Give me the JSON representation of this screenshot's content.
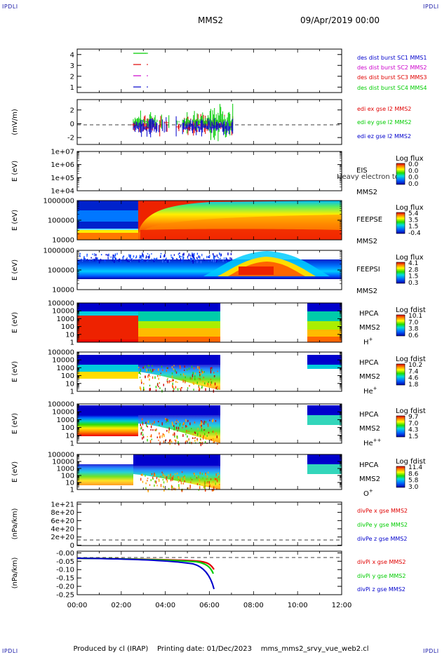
{
  "header": {
    "title": "MMS2",
    "date": "09/Apr/2019 00:00"
  },
  "corner_label": "IPDLI",
  "footer": {
    "producer": "Produced by cl (IRAP)",
    "printing_date": "Printing date: 01/Dec/2023",
    "script": "mms_mms2_srvy_vue_web2.cl"
  },
  "colors": {
    "red": "#e00000",
    "green": "#00cc00",
    "blue": "#0000cc",
    "magenta": "#cc00cc"
  },
  "chart_data": [
    {
      "type": "line",
      "name": "burst-segments",
      "ylim": [
        0.5,
        4.5
      ],
      "ticks": [
        "1",
        "2",
        "3",
        "4"
      ],
      "series": [
        {
          "name": "des dist burst SC1 MMS1",
          "color": "#0000cc"
        },
        {
          "name": "des dist burst SC2 MMS2",
          "color": "#cc00cc"
        },
        {
          "name": "des dist burst SC3 MMS3",
          "color": "#e00000"
        },
        {
          "name": "des dist burst SC4 MMS4",
          "color": "#00cc00"
        }
      ]
    },
    {
      "type": "line",
      "name": "edi-e-field",
      "ylabel": "(mV/m)",
      "ylim": [
        -3,
        3.5
      ],
      "ticks": [
        "-2",
        "0",
        "2"
      ],
      "series": [
        {
          "name": "edi ex gse l2 MMS2",
          "color": "#e00000"
        },
        {
          "name": "edi ey gse l2 MMS2",
          "color": "#00cc00"
        },
        {
          "name": "edi ez gse l2 MMS2",
          "color": "#0000cc"
        }
      ]
    },
    {
      "type": "heatmap",
      "name": "eis",
      "ylabel": "E (eV)",
      "ticks": [
        "1e+07",
        "1e+06",
        "1e+05",
        "1e+04"
      ],
      "instrument": "EIS",
      "spacecraft": "MMS2",
      "overlay": "Heavy electron to",
      "colorbar": {
        "title": "Log flux",
        "labels": [
          "0.0",
          "0.0",
          "0.0",
          "0.0"
        ]
      }
    },
    {
      "type": "heatmap",
      "name": "feeps-electron",
      "ylabel": "E (eV)",
      "ticks": [
        "1000000",
        "100000",
        "10000"
      ],
      "instrument": "FEEPSE",
      "spacecraft": "MMS2",
      "colorbar": {
        "title": "Log flux",
        "labels": [
          "5.4",
          "3.5",
          "1.5",
          "-0.4"
        ]
      }
    },
    {
      "type": "heatmap",
      "name": "feeps-ion",
      "ylabel": "E (eV)",
      "ticks": [
        "1000000",
        "100000",
        "10000"
      ],
      "instrument": "FEEPSI",
      "spacecraft": "MMS2",
      "colorbar": {
        "title": "Log flux",
        "labels": [
          "4.1",
          "2.8",
          "1.5",
          "0.3"
        ]
      }
    },
    {
      "type": "heatmap",
      "name": "hpca-h",
      "ylabel": "E (eV)",
      "ticks": [
        "100000",
        "10000",
        "1000",
        "100",
        "10",
        "1"
      ],
      "instrument": "HPCA",
      "spacecraft": "MMS2",
      "species": "H",
      "charge": "+",
      "colorbar": {
        "title": "Log fdist",
        "labels": [
          "10.1",
          "7.0",
          "3.8",
          "0.6"
        ]
      }
    },
    {
      "type": "heatmap",
      "name": "hpca-he-plus",
      "ylabel": "E (eV)",
      "ticks": [
        "100000",
        "10000",
        "1000",
        "100",
        "10",
        "1"
      ],
      "instrument": "HPCA",
      "spacecraft": "MMS2",
      "species": "He",
      "charge": "+",
      "colorbar": {
        "title": "Log fdist",
        "labels": [
          "10.2",
          "7.4",
          "4.6",
          "1.8"
        ]
      }
    },
    {
      "type": "heatmap",
      "name": "hpca-he-plusplus",
      "ylabel": "E (eV)",
      "ticks": [
        "100000",
        "10000",
        "1000",
        "100",
        "10",
        "1"
      ],
      "instrument": "HPCA",
      "spacecraft": "MMS2",
      "species": "He",
      "charge": "++",
      "colorbar": {
        "title": "Log fdist",
        "labels": [
          "9.7",
          "7.0",
          "4.3",
          "1.5"
        ]
      }
    },
    {
      "type": "heatmap",
      "name": "hpca-o-plus",
      "ylabel": "E (eV)",
      "ticks": [
        "100000",
        "10000",
        "1000",
        "100",
        "10",
        "1"
      ],
      "instrument": "HPCA",
      "spacecraft": "MMS2",
      "species": "O",
      "charge": "+",
      "colorbar": {
        "title": "Log fdist",
        "labels": [
          "11.4",
          "8.6",
          "5.8",
          "3.0"
        ]
      }
    },
    {
      "type": "line",
      "name": "divpe",
      "ylabel": "(nPa/km)",
      "ylim": [
        -1e+19,
        1.05e+21
      ],
      "ticks": [
        "1e+21",
        "8e+20",
        "6e+20",
        "4e+20",
        "2e+20",
        "0"
      ],
      "series": [
        {
          "name": "divPe x gse MMS2",
          "color": "#e00000"
        },
        {
          "name": "divPe y gse MMS2",
          "color": "#00cc00"
        },
        {
          "name": "divPe z gse MMS2",
          "color": "#0000cc"
        }
      ]
    },
    {
      "type": "line",
      "name": "divpi",
      "ylabel": "(nPa/km)",
      "ylim": [
        -0.25,
        0.01
      ],
      "ticks": [
        "-0.00",
        "-0.05",
        "-0.10",
        "-0.15",
        "-0.20",
        "-0.25"
      ],
      "series": [
        {
          "name": "divPi x gse MMS2",
          "color": "#e00000"
        },
        {
          "name": "divPi y gse MMS2",
          "color": "#00cc00"
        },
        {
          "name": "divPi z gse MMS2",
          "color": "#0000cc"
        }
      ]
    }
  ],
  "time_axis": {
    "labels": [
      "00:00",
      "02:00",
      "04:00",
      "06:00",
      "08:00",
      "10:00",
      "12:00"
    ]
  }
}
